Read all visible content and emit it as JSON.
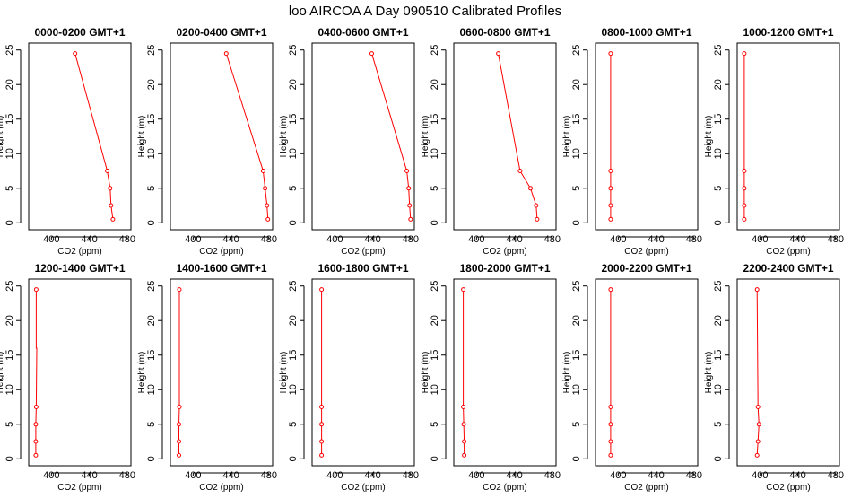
{
  "title": "loo AIRCOA A  Day 090510  Calibrated Profiles",
  "series_color": "#ff0000",
  "chart_data": [
    {
      "type": "line",
      "title": "0000-0200 GMT+1",
      "xlabel": "CO2 (ppm)",
      "ylabel": "Height (m)",
      "xlim": [
        380,
        480
      ],
      "ylim": [
        0,
        25
      ],
      "xticks": [
        "400",
        "440",
        "480"
      ],
      "yticks": [
        "0",
        "5",
        "10",
        "15",
        "20",
        "25"
      ],
      "grid": false,
      "series": [
        {
          "x": [
            465,
            463,
            462,
            459,
            425
          ],
          "y": [
            0.5,
            2.5,
            5,
            7.5,
            24.5
          ]
        }
      ]
    },
    {
      "type": "line",
      "title": "0200-0400 GMT+1",
      "xlabel": "CO2 (ppm)",
      "ylabel": "Height (m)",
      "xlim": [
        380,
        480
      ],
      "ylim": [
        0,
        25
      ],
      "xticks": [
        "400",
        "440",
        "480"
      ],
      "yticks": [
        "0",
        "5",
        "10",
        "15",
        "20",
        "25"
      ],
      "grid": false,
      "series": [
        {
          "x": [
            479,
            478,
            476,
            474,
            435
          ],
          "y": [
            0.5,
            2.5,
            5,
            7.5,
            24.5
          ]
        }
      ]
    },
    {
      "type": "line",
      "title": "0400-0600 GMT+1",
      "xlabel": "CO2 (ppm)",
      "ylabel": "Height (m)",
      "xlim": [
        380,
        480
      ],
      "ylim": [
        0,
        25
      ],
      "xticks": [
        "400",
        "440",
        "480"
      ],
      "yticks": [
        "0",
        "5",
        "10",
        "15",
        "20",
        "25"
      ],
      "grid": false,
      "series": [
        {
          "x": [
            480,
            479,
            478,
            476,
            439
          ],
          "y": [
            0.5,
            2.5,
            5,
            7.5,
            24.5
          ]
        }
      ]
    },
    {
      "type": "line",
      "title": "0600-0800 GMT+1",
      "xlabel": "CO2 (ppm)",
      "ylabel": "Height (m)",
      "xlim": [
        380,
        480
      ],
      "ylim": [
        0,
        25
      ],
      "xticks": [
        "400",
        "440",
        "480"
      ],
      "yticks": [
        "0",
        "5",
        "10",
        "15",
        "20",
        "25"
      ],
      "grid": false,
      "series": [
        {
          "x": [
            464,
            463,
            457,
            446,
            423
          ],
          "y": [
            0.5,
            2.5,
            5,
            7.5,
            24.5
          ]
        }
      ]
    },
    {
      "type": "line",
      "title": "0800-1000 GMT+1",
      "xlabel": "CO2 (ppm)",
      "ylabel": "Height (m)",
      "xlim": [
        380,
        480
      ],
      "ylim": [
        0,
        25
      ],
      "xticks": [
        "400",
        "440",
        "480"
      ],
      "yticks": [
        "0",
        "5",
        "10",
        "15",
        "20",
        "25"
      ],
      "grid": false,
      "series": [
        {
          "x": [
            392,
            392,
            392,
            392,
            392
          ],
          "y": [
            0.5,
            2.5,
            5,
            7.5,
            24.5
          ]
        }
      ]
    },
    {
      "type": "line",
      "title": "1000-1200 GMT+1",
      "xlabel": "CO2 (ppm)",
      "ylabel": "Height (m)",
      "xlim": [
        380,
        480
      ],
      "ylim": [
        0,
        25
      ],
      "xticks": [
        "400",
        "440",
        "480"
      ],
      "yticks": [
        "0",
        "5",
        "10",
        "15",
        "20",
        "25"
      ],
      "grid": false,
      "series": [
        {
          "x": [
            383.5,
            383.5,
            383.5,
            383.5,
            383.5
          ],
          "y": [
            0.5,
            2.5,
            5,
            7.5,
            24.5
          ]
        }
      ]
    },
    {
      "type": "line",
      "title": "1200-1400 GMT+1",
      "xlabel": "CO2 (ppm)",
      "ylabel": "Height (m)",
      "xlim": [
        380,
        480
      ],
      "ylim": [
        0,
        25
      ],
      "xticks": [
        "400",
        "440",
        "480"
      ],
      "yticks": [
        "0",
        "5",
        "10",
        "15",
        "20",
        "25"
      ],
      "grid": false,
      "series": [
        {
          "x": [
            383.5,
            383.5,
            383.5,
            384,
            384.5,
            384,
            384
          ],
          "y": [
            0.5,
            2.5,
            5,
            7.5,
            16,
            16,
            24.5
          ]
        }
      ]
    },
    {
      "type": "line",
      "title": "1400-1600 GMT+1",
      "xlabel": "CO2 (ppm)",
      "ylabel": "Height (m)",
      "xlim": [
        380,
        480
      ],
      "ylim": [
        0,
        25
      ],
      "xticks": [
        "400",
        "440",
        "480"
      ],
      "yticks": [
        "0",
        "5",
        "10",
        "15",
        "20",
        "25"
      ],
      "grid": false,
      "series": [
        {
          "x": [
            385,
            385,
            385,
            385.5,
            385.5
          ],
          "y": [
            0.5,
            2.5,
            5,
            7.5,
            24.5
          ]
        }
      ]
    },
    {
      "type": "line",
      "title": "1600-1800 GMT+1",
      "xlabel": "CO2 (ppm)",
      "ylabel": "Height (m)",
      "xlim": [
        380,
        480
      ],
      "ylim": [
        0,
        25
      ],
      "xticks": [
        "400",
        "440",
        "480"
      ],
      "yticks": [
        "0",
        "5",
        "10",
        "15",
        "20",
        "25"
      ],
      "grid": false,
      "series": [
        {
          "x": [
            386,
            386,
            386,
            386,
            386
          ],
          "y": [
            0.5,
            2.5,
            5,
            7.5,
            24.5
          ]
        }
      ]
    },
    {
      "type": "line",
      "title": "1800-2000 GMT+1",
      "xlabel": "CO2 (ppm)",
      "ylabel": "Height (m)",
      "xlim": [
        380,
        480
      ],
      "ylim": [
        0,
        25
      ],
      "xticks": [
        "400",
        "440",
        "480"
      ],
      "yticks": [
        "0",
        "5",
        "10",
        "15",
        "20",
        "25"
      ],
      "grid": false,
      "series": [
        {
          "x": [
            387,
            387,
            386.5,
            386,
            386
          ],
          "y": [
            0.5,
            2.5,
            5,
            7.5,
            24.5
          ]
        }
      ]
    },
    {
      "type": "line",
      "title": "2000-2200 GMT+1",
      "xlabel": "CO2 (ppm)",
      "ylabel": "Height (m)",
      "xlim": [
        380,
        480
      ],
      "ylim": [
        0,
        25
      ],
      "xticks": [
        "400",
        "440",
        "480"
      ],
      "yticks": [
        "0",
        "5",
        "10",
        "15",
        "20",
        "25"
      ],
      "grid": false,
      "series": [
        {
          "x": [
            392,
            392,
            392,
            392,
            392
          ],
          "y": [
            0.5,
            2.5,
            5,
            7.5,
            24.5
          ]
        }
      ]
    },
    {
      "type": "line",
      "title": "2200-2400 GMT+1",
      "xlabel": "CO2 (ppm)",
      "ylabel": "Height (m)",
      "xlim": [
        380,
        480
      ],
      "ylim": [
        0,
        25
      ],
      "xticks": [
        "400",
        "440",
        "480"
      ],
      "yticks": [
        "0",
        "5",
        "10",
        "15",
        "20",
        "25"
      ],
      "grid": false,
      "series": [
        {
          "x": [
            397,
            398,
            399,
            398,
            397
          ],
          "y": [
            0.5,
            2.5,
            5,
            7.5,
            24.5
          ]
        }
      ]
    }
  ]
}
